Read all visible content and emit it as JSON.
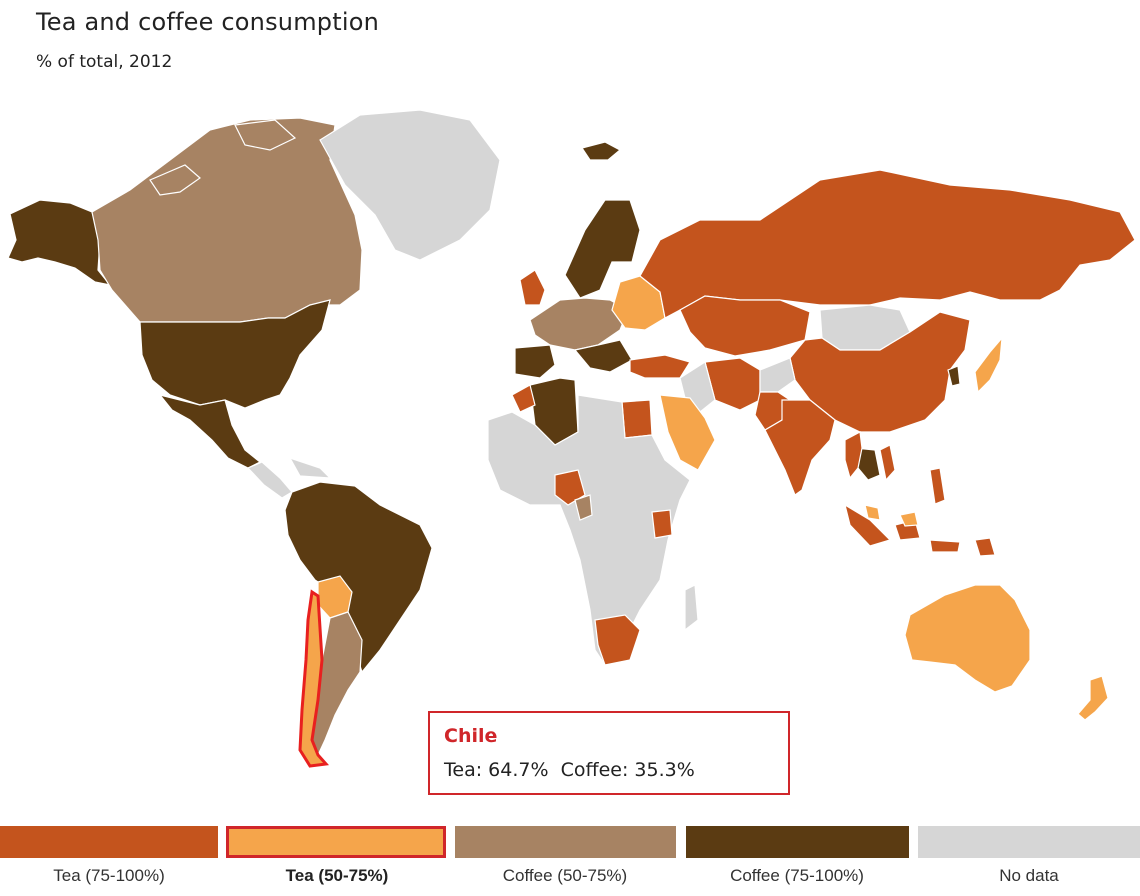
{
  "title": "Tea and coffee consumption",
  "subtitle": "% of total, 2012",
  "colors": {
    "tea_75_100": "#c4541d",
    "tea_50_75": "#f5a54b",
    "coffee_50_75": "#a78363",
    "coffee_75_100": "#5b3b12",
    "no_data": "#d6d6d6",
    "highlight": "#d0262a"
  },
  "tooltip": {
    "country": "Chile",
    "values": "Tea: 64.7%  Coffee: 35.3%"
  },
  "legend": [
    {
      "label": "Tea (75-100%)",
      "color_key": "tea_75_100",
      "selected": false
    },
    {
      "label": "Tea (50-75%)",
      "color_key": "tea_50_75",
      "selected": true
    },
    {
      "label": "Coffee (50-75%)",
      "color_key": "coffee_50_75",
      "selected": false
    },
    {
      "label": "Coffee (75-100%)",
      "color_key": "coffee_75_100",
      "selected": false
    },
    {
      "label": "No data",
      "color_key": "no_data",
      "selected": false
    }
  ],
  "chart_data": {
    "type": "choropleth",
    "title": "Tea and coffee consumption",
    "subtitle": "% of total, 2012",
    "highlighted": "Chile",
    "highlighted_values": {
      "tea": 64.7,
      "coffee": 35.3
    },
    "categories": [
      "Tea (75-100%)",
      "Tea (50-75%)",
      "Coffee (50-75%)",
      "Coffee (75-100%)",
      "No data"
    ]
  }
}
